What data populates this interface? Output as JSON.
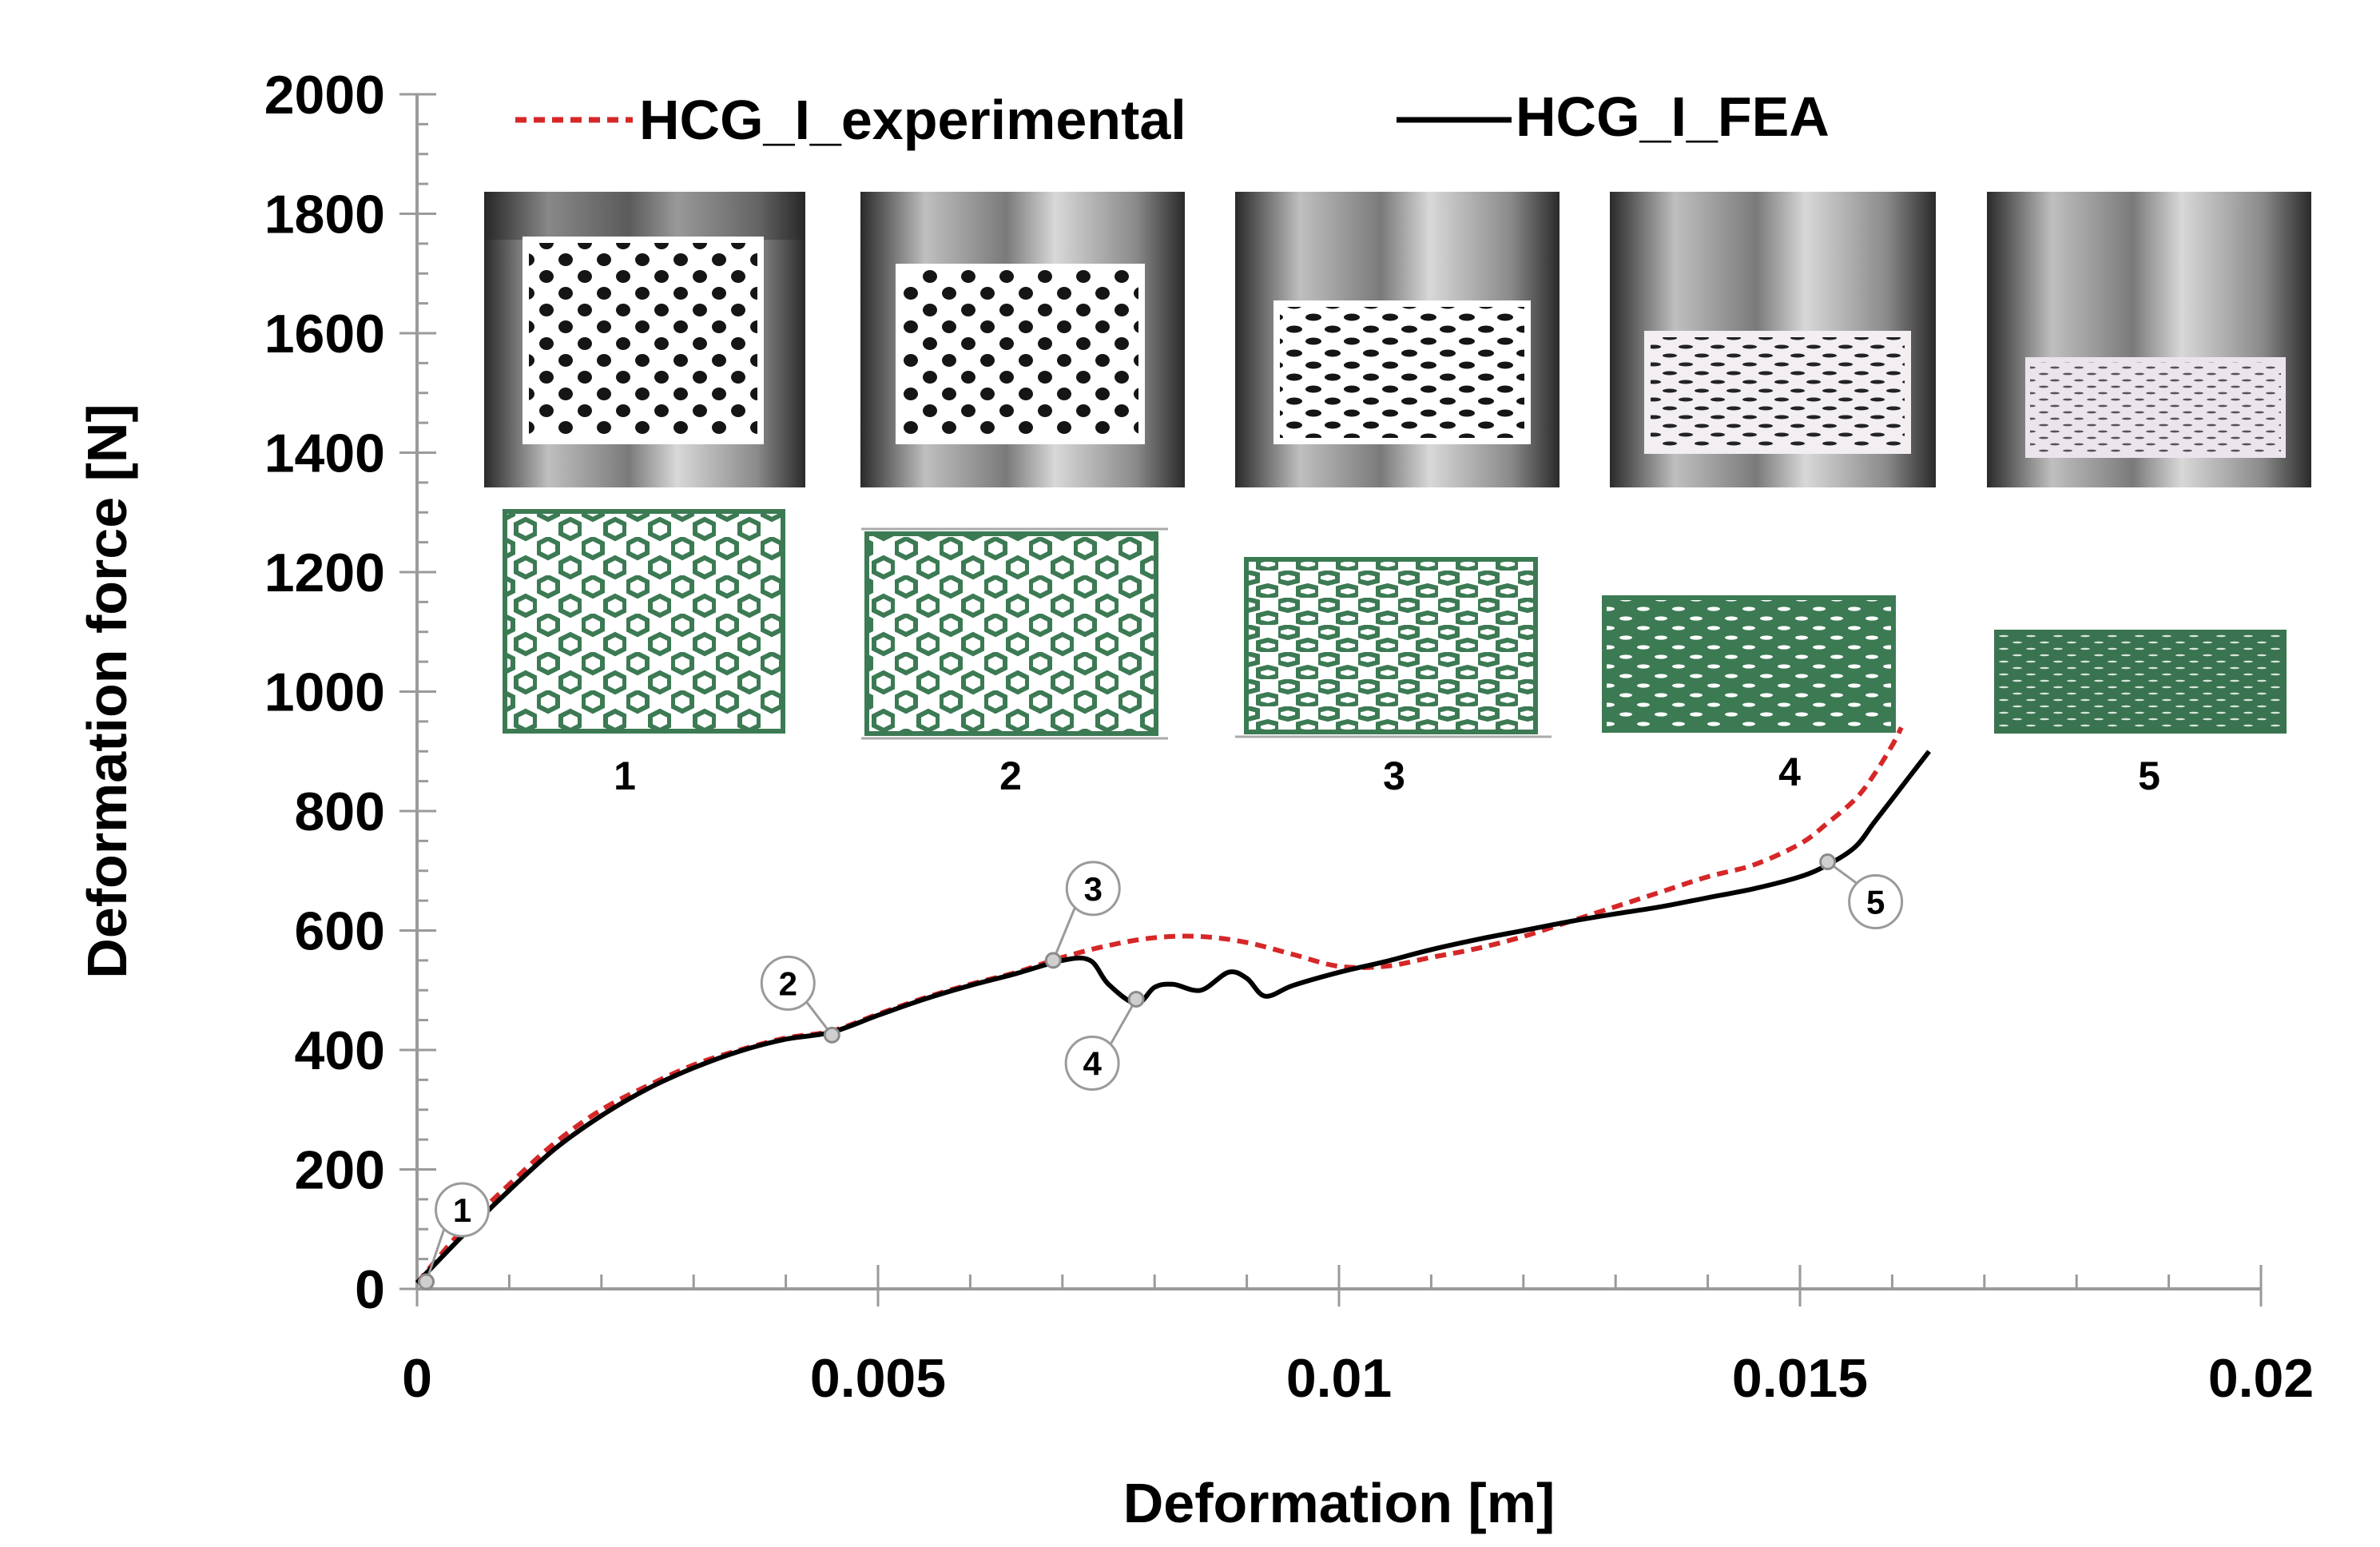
{
  "chart_data": {
    "type": "line",
    "xlabel": "Deformation [m]",
    "ylabel": "Deformation force [N]",
    "xlim": [
      0,
      0.02
    ],
    "ylim": [
      0,
      2000
    ],
    "x_ticks": [
      0,
      0.005,
      0.01,
      0.015,
      0.02
    ],
    "x_tick_labels": [
      "0",
      "0.005",
      "0.01",
      "0.015",
      "0.02"
    ],
    "y_ticks": [
      0,
      200,
      400,
      600,
      800,
      1000,
      1200,
      1400,
      1600,
      1800,
      2000
    ],
    "y_tick_labels": [
      "0",
      "200",
      "400",
      "600",
      "800",
      "1000",
      "1200",
      "1400",
      "1600",
      "1800",
      "2000"
    ],
    "grid": false,
    "legend": "top",
    "series": [
      {
        "name": "HCG_I_experimental",
        "color": "#d62728",
        "style": "dashed",
        "x": [
          0,
          0.0005,
          0.001,
          0.0015,
          0.002,
          0.0025,
          0.003,
          0.0035,
          0.004,
          0.0045,
          0.005,
          0.0055,
          0.006,
          0.0065,
          0.007,
          0.0075,
          0.008,
          0.0085,
          0.009,
          0.0095,
          0.01,
          0.0105,
          0.011,
          0.0115,
          0.012,
          0.0125,
          0.013,
          0.0135,
          0.014,
          0.0145,
          0.015,
          0.0153,
          0.0156,
          0.0158,
          0.016,
          0.0161
        ],
        "y": [
          10,
          100,
          175,
          245,
          300,
          340,
          375,
          400,
          420,
          432,
          460,
          487,
          510,
          530,
          555,
          575,
          588,
          590,
          580,
          560,
          540,
          540,
          555,
          570,
          590,
          615,
          640,
          665,
          690,
          710,
          745,
          780,
          820,
          860,
          910,
          940
        ]
      },
      {
        "name": "HCG_I_FEA",
        "color": "#000000",
        "style": "solid",
        "x": [
          0,
          0.0005,
          0.001,
          0.0015,
          0.002,
          0.0025,
          0.003,
          0.0035,
          0.004,
          0.0045,
          0.005,
          0.0055,
          0.006,
          0.0065,
          0.007,
          0.0073,
          0.0075,
          0.0078,
          0.008,
          0.0082,
          0.0085,
          0.0088,
          0.009,
          0.0092,
          0.0095,
          0.01,
          0.0105,
          0.011,
          0.0115,
          0.012,
          0.0125,
          0.013,
          0.0135,
          0.014,
          0.0145,
          0.015,
          0.0153,
          0.0156,
          0.0158,
          0.016,
          0.0162,
          0.0164
        ],
        "y": [
          10,
          90,
          165,
          235,
          290,
          335,
          370,
          398,
          418,
          430,
          458,
          485,
          508,
          528,
          550,
          550,
          510,
          478,
          505,
          510,
          500,
          530,
          520,
          490,
          508,
          530,
          548,
          568,
          585,
          600,
          615,
          628,
          640,
          655,
          670,
          690,
          710,
          740,
          780,
          820,
          860,
          900
        ]
      }
    ],
    "markers": [
      {
        "label": "1",
        "x": 0.0001,
        "y": 12
      },
      {
        "label": "2",
        "x": 0.0045,
        "y": 425
      },
      {
        "label": "3",
        "x": 0.0069,
        "y": 550
      },
      {
        "label": "4",
        "x": 0.0078,
        "y": 485
      },
      {
        "label": "5",
        "x": 0.0153,
        "y": 715
      }
    ],
    "image_captions": [
      "1",
      "2",
      "3",
      "4",
      "5"
    ]
  }
}
